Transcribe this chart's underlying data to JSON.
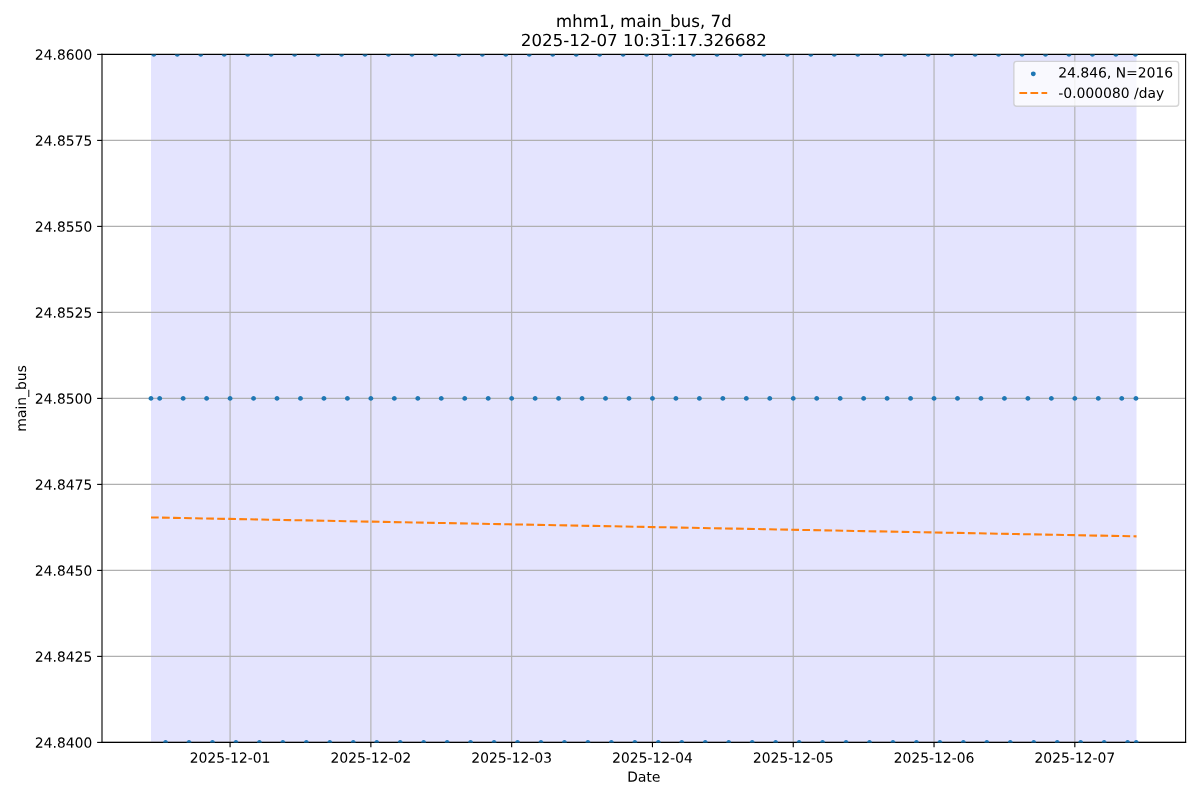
{
  "chart_data": {
    "type": "scatter",
    "title": "mhm1, main_bus, 7d",
    "subtitle": "2025-12-07 10:31:17.326682",
    "xlabel": "Date",
    "ylabel": "main_bus",
    "xlim": [
      "2025-11-30T02:10",
      "2025-12-07T18:53"
    ],
    "ylim": [
      24.84,
      24.86
    ],
    "xticks": [
      "2025-12-01",
      "2025-12-02",
      "2025-12-03",
      "2025-12-04",
      "2025-12-05",
      "2025-12-06",
      "2025-12-07"
    ],
    "yticks": [
      {
        "value": 24.84,
        "label": "24.8400"
      },
      {
        "value": 24.8425,
        "label": "24.8425"
      },
      {
        "value": 24.845,
        "label": "24.8450"
      },
      {
        "value": 24.8475,
        "label": "24.8475"
      },
      {
        "value": 24.85,
        "label": "24.8500"
      },
      {
        "value": 24.8525,
        "label": "24.8525"
      },
      {
        "value": 24.855,
        "label": "24.8550"
      },
      {
        "value": 24.8575,
        "label": "24.8575"
      },
      {
        "value": 24.86,
        "label": "24.8600"
      }
    ],
    "grid": true,
    "legend": "top right",
    "marker": "circle",
    "bands": [
      {
        "axis": "x",
        "from": "2025-11-30T10:31",
        "to": "2025-12-07T10:31",
        "color": "#e4e4fe"
      }
    ],
    "series": [
      {
        "name": "24.846, N=2016",
        "color": "#1f77b4",
        "x": [
          "2025-11-30T11:00",
          "2025-11-30T15:00",
          "2025-11-30T19:00",
          "2025-11-30T23:00",
          "2025-12-01T03:00",
          "2025-12-01T07:00",
          "2025-12-01T11:00",
          "2025-12-01T15:00",
          "2025-12-01T19:00",
          "2025-12-01T23:00",
          "2025-12-02T03:00",
          "2025-12-02T07:00",
          "2025-12-02T11:00",
          "2025-12-02T15:00",
          "2025-12-02T19:00",
          "2025-12-02T23:00",
          "2025-12-03T03:00",
          "2025-12-03T07:00",
          "2025-12-03T11:00",
          "2025-12-03T15:00",
          "2025-12-03T19:00",
          "2025-12-03T23:00",
          "2025-12-04T03:00",
          "2025-12-04T07:00",
          "2025-12-04T11:00",
          "2025-12-04T15:00",
          "2025-12-04T19:00",
          "2025-12-04T23:00",
          "2025-12-05T03:00",
          "2025-12-05T07:00",
          "2025-12-05T11:00",
          "2025-12-05T15:00",
          "2025-12-05T19:00",
          "2025-12-05T23:00",
          "2025-12-06T03:00",
          "2025-12-06T07:00",
          "2025-12-06T11:00",
          "2025-12-06T15:00",
          "2025-12-06T19:00",
          "2025-12-06T23:00",
          "2025-12-07T03:00",
          "2025-12-07T07:00",
          "2025-12-07T10:20",
          "2025-11-30T10:31",
          "2025-11-30T12:00",
          "2025-11-30T16:00",
          "2025-11-30T20:00",
          "2025-12-01T00:00",
          "2025-12-01T04:00",
          "2025-12-01T08:00",
          "2025-12-01T12:00",
          "2025-12-01T16:00",
          "2025-12-01T20:00",
          "2025-12-02T00:00",
          "2025-12-02T04:00",
          "2025-12-02T08:00",
          "2025-12-02T12:00",
          "2025-12-02T16:00",
          "2025-12-02T20:00",
          "2025-12-03T00:00",
          "2025-12-03T04:00",
          "2025-12-03T08:00",
          "2025-12-03T12:00",
          "2025-12-03T16:00",
          "2025-12-03T20:00",
          "2025-12-04T00:00",
          "2025-12-04T04:00",
          "2025-12-04T08:00",
          "2025-12-04T12:00",
          "2025-12-04T16:00",
          "2025-12-04T20:00",
          "2025-12-05T00:00",
          "2025-12-05T04:00",
          "2025-12-05T08:00",
          "2025-12-05T12:00",
          "2025-12-05T16:00",
          "2025-12-05T20:00",
          "2025-12-06T00:00",
          "2025-12-06T04:00",
          "2025-12-06T08:00",
          "2025-12-06T12:00",
          "2025-12-06T16:00",
          "2025-12-06T20:00",
          "2025-12-07T00:00",
          "2025-12-07T04:00",
          "2025-12-07T08:00",
          "2025-12-07T10:25",
          "2025-11-30T13:00",
          "2025-11-30T17:00",
          "2025-11-30T21:00",
          "2025-12-01T01:00",
          "2025-12-01T05:00",
          "2025-12-01T09:00",
          "2025-12-01T13:00",
          "2025-12-01T17:00",
          "2025-12-01T21:00",
          "2025-12-02T01:00",
          "2025-12-02T05:00",
          "2025-12-02T09:00",
          "2025-12-02T13:00",
          "2025-12-02T17:00",
          "2025-12-02T21:00",
          "2025-12-03T01:00",
          "2025-12-03T05:00",
          "2025-12-03T09:00",
          "2025-12-03T13:00",
          "2025-12-03T17:00",
          "2025-12-03T21:00",
          "2025-12-04T01:00",
          "2025-12-04T05:00",
          "2025-12-04T09:00",
          "2025-12-04T13:00",
          "2025-12-04T17:00",
          "2025-12-04T21:00",
          "2025-12-05T01:00",
          "2025-12-05T05:00",
          "2025-12-05T09:00",
          "2025-12-05T13:00",
          "2025-12-05T17:00",
          "2025-12-05T21:00",
          "2025-12-06T01:00",
          "2025-12-06T05:00",
          "2025-12-06T09:00",
          "2025-12-06T13:00",
          "2025-12-06T17:00",
          "2025-12-06T21:00",
          "2025-12-07T01:00",
          "2025-12-07T05:00",
          "2025-12-07T09:00",
          "2025-12-07T10:28"
        ],
        "values": [
          24.86,
          24.86,
          24.86,
          24.86,
          24.86,
          24.86,
          24.86,
          24.86,
          24.86,
          24.86,
          24.86,
          24.86,
          24.86,
          24.86,
          24.86,
          24.86,
          24.86,
          24.86,
          24.86,
          24.86,
          24.86,
          24.86,
          24.86,
          24.86,
          24.86,
          24.86,
          24.86,
          24.86,
          24.86,
          24.86,
          24.86,
          24.86,
          24.86,
          24.86,
          24.86,
          24.86,
          24.86,
          24.86,
          24.86,
          24.86,
          24.86,
          24.86,
          24.86,
          24.85,
          24.85,
          24.85,
          24.85,
          24.85,
          24.85,
          24.85,
          24.85,
          24.85,
          24.85,
          24.85,
          24.85,
          24.85,
          24.85,
          24.85,
          24.85,
          24.85,
          24.85,
          24.85,
          24.85,
          24.85,
          24.85,
          24.85,
          24.85,
          24.85,
          24.85,
          24.85,
          24.85,
          24.85,
          24.85,
          24.85,
          24.85,
          24.85,
          24.85,
          24.85,
          24.85,
          24.85,
          24.85,
          24.85,
          24.85,
          24.85,
          24.85,
          24.85,
          24.85,
          24.84,
          24.84,
          24.84,
          24.84,
          24.84,
          24.84,
          24.84,
          24.84,
          24.84,
          24.84,
          24.84,
          24.84,
          24.84,
          24.84,
          24.84,
          24.84,
          24.84,
          24.84,
          24.84,
          24.84,
          24.84,
          24.84,
          24.84,
          24.84,
          24.84,
          24.84,
          24.84,
          24.84,
          24.84,
          24.84,
          24.84,
          24.84,
          24.84,
          24.84,
          24.84,
          24.84,
          24.84,
          24.84,
          24.84,
          24.84,
          24.84,
          24.84,
          24.84
        ]
      },
      {
        "name": "-0.000080 /day",
        "type": "line",
        "color": "#ff7f0e",
        "line_style": "dashed",
        "marker": "none",
        "x": [
          "2025-11-30T10:31",
          "2025-12-07T10:31"
        ],
        "values": [
          24.84654,
          24.84599
        ]
      }
    ]
  }
}
